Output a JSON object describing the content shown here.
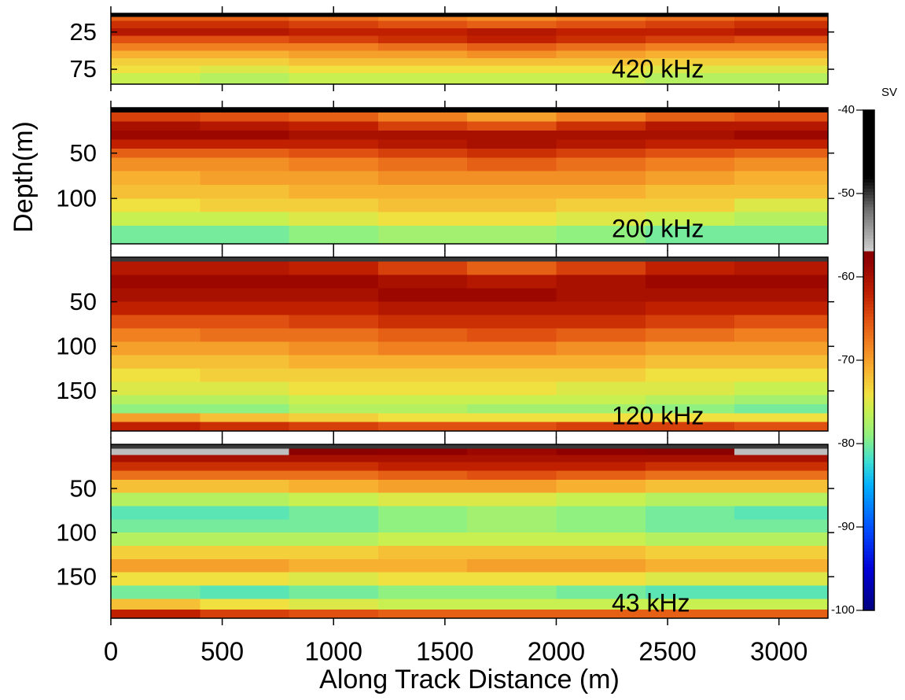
{
  "chart_data": [
    {
      "type": "heatmap",
      "label": "420 kHz",
      "xlim": [
        0,
        3220
      ],
      "xticks": [
        0,
        500,
        1000,
        1500,
        2000,
        2500,
        3000
      ],
      "ylim": [
        0,
        95
      ],
      "yticks": [
        25,
        75
      ],
      "x_bins": [
        0,
        400,
        800,
        1200,
        1600,
        2000,
        2400,
        2800,
        3220
      ],
      "y_bins": [
        0,
        5,
        10,
        20,
        30,
        40,
        50,
        60,
        70,
        80,
        95
      ],
      "z": [
        [
          -45,
          -45,
          -45,
          -45,
          -45,
          -45,
          -45,
          -45
        ],
        [
          -66,
          -66,
          -67,
          -68,
          -69,
          -68,
          -67,
          -66
        ],
        [
          -63,
          -63,
          -64,
          -65,
          -66,
          -65,
          -64,
          -63
        ],
        [
          -61,
          -61,
          -62,
          -62,
          -61,
          -62,
          -62,
          -61
        ],
        [
          -65,
          -65,
          -64,
          -63,
          -62,
          -63,
          -64,
          -65
        ],
        [
          -68,
          -68,
          -68,
          -67,
          -66,
          -67,
          -68,
          -68
        ],
        [
          -71,
          -71,
          -70,
          -70,
          -69,
          -70,
          -71,
          -71
        ],
        [
          -73,
          -73,
          -72,
          -72,
          -72,
          -72,
          -73,
          -73
        ],
        [
          -74,
          -75,
          -74,
          -74,
          -74,
          -74,
          -75,
          -75
        ],
        [
          -76,
          -77,
          -76,
          -76,
          -76,
          -76,
          -77,
          -77
        ]
      ]
    },
    {
      "type": "heatmap",
      "label": "200 kHz",
      "ylabel": "Depth(m)",
      "xlim": [
        0,
        3220
      ],
      "xticks": [
        0,
        500,
        1000,
        1500,
        2000,
        2500,
        3000
      ],
      "ylim": [
        0,
        150
      ],
      "yticks": [
        50,
        100
      ],
      "x_bins": [
        0,
        400,
        800,
        1200,
        1600,
        2000,
        2400,
        2800,
        3220
      ],
      "y_bins": [
        0,
        5,
        15,
        25,
        35,
        45,
        55,
        70,
        85,
        100,
        115,
        130,
        150
      ],
      "z": [
        [
          -48,
          -48,
          -48,
          -48,
          -48,
          -48,
          -48,
          -48
        ],
        [
          -64,
          -65,
          -66,
          -68,
          -70,
          -68,
          -66,
          -65
        ],
        [
          -60,
          -61,
          -62,
          -64,
          -65,
          -63,
          -61,
          -61
        ],
        [
          -59,
          -59,
          -60,
          -60,
          -60,
          -60,
          -60,
          -59
        ],
        [
          -62,
          -62,
          -62,
          -61,
          -60,
          -61,
          -62,
          -62
        ],
        [
          -66,
          -66,
          -65,
          -64,
          -63,
          -64,
          -65,
          -66
        ],
        [
          -69,
          -69,
          -68,
          -67,
          -66,
          -67,
          -68,
          -69
        ],
        [
          -71,
          -70,
          -70,
          -69,
          -69,
          -69,
          -70,
          -71
        ],
        [
          -72,
          -72,
          -71,
          -71,
          -71,
          -71,
          -72,
          -72
        ],
        [
          -74,
          -73,
          -73,
          -72,
          -72,
          -73,
          -73,
          -75
        ],
        [
          -76,
          -76,
          -75,
          -74,
          -74,
          -75,
          -76,
          -77
        ],
        [
          -80,
          -80,
          -79,
          -78,
          -78,
          -79,
          -80,
          -80
        ]
      ]
    },
    {
      "type": "heatmap",
      "label": "120 kHz",
      "xlim": [
        0,
        3220
      ],
      "xticks": [
        0,
        500,
        1000,
        1500,
        2000,
        2500,
        3000
      ],
      "ylim": [
        0,
        195
      ],
      "yticks": [
        50,
        100,
        150
      ],
      "x_bins": [
        0,
        400,
        800,
        1200,
        1600,
        2000,
        2400,
        2800,
        3220
      ],
      "y_bins": [
        0,
        5,
        20,
        35,
        50,
        65,
        80,
        95,
        110,
        125,
        140,
        155,
        165,
        175,
        185,
        195
      ],
      "z": [
        [
          -50,
          -50,
          -50,
          -50,
          -50,
          -50,
          -50,
          -50
        ],
        [
          -61,
          -61,
          -62,
          -64,
          -66,
          -64,
          -62,
          -61
        ],
        [
          -59,
          -59,
          -59,
          -60,
          -61,
          -60,
          -59,
          -59
        ],
        [
          -60,
          -60,
          -60,
          -59,
          -59,
          -60,
          -60,
          -60
        ],
        [
          -62,
          -62,
          -62,
          -61,
          -61,
          -61,
          -62,
          -62
        ],
        [
          -65,
          -65,
          -64,
          -63,
          -63,
          -63,
          -64,
          -65
        ],
        [
          -68,
          -67,
          -67,
          -66,
          -65,
          -66,
          -67,
          -68
        ],
        [
          -70,
          -70,
          -69,
          -68,
          -68,
          -69,
          -70,
          -70
        ],
        [
          -72,
          -72,
          -71,
          -71,
          -71,
          -71,
          -72,
          -72
        ],
        [
          -74,
          -73,
          -73,
          -73,
          -73,
          -73,
          -74,
          -74
        ],
        [
          -75,
          -75,
          -74,
          -74,
          -74,
          -75,
          -75,
          -76
        ],
        [
          -77,
          -77,
          -76,
          -76,
          -76,
          -76,
          -77,
          -78
        ],
        [
          -79,
          -79,
          -77,
          -77,
          -78,
          -78,
          -79,
          -80
        ],
        [
          -70,
          -72,
          -73,
          -74,
          -74,
          -74,
          -74,
          -74
        ],
        [
          -62,
          -63,
          -64,
          -65,
          -65,
          -64,
          -64,
          -65
        ]
      ]
    },
    {
      "type": "heatmap",
      "label": "43 kHz",
      "xlabel": "Along Track Distance (m)",
      "xlim": [
        0,
        3220
      ],
      "xticks": [
        0,
        500,
        1000,
        1500,
        2000,
        2500,
        3000
      ],
      "ylim": [
        0,
        197
      ],
      "yticks": [
        50,
        100,
        150
      ],
      "x_bins": [
        0,
        400,
        800,
        1200,
        1600,
        2000,
        2400,
        2800,
        3220
      ],
      "y_bins": [
        0,
        5,
        12,
        20,
        30,
        40,
        55,
        70,
        85,
        100,
        115,
        130,
        145,
        160,
        175,
        187,
        197
      ],
      "z": [
        [
          -50,
          -50,
          -50,
          -50,
          -50,
          -50,
          -50,
          -50
        ],
        [
          -56,
          -56,
          -57,
          -58,
          -59,
          -58,
          -57,
          -56
        ],
        [
          -60,
          -60,
          -60,
          -60,
          -60,
          -60,
          -60,
          -60
        ],
        [
          -63,
          -63,
          -63,
          -62,
          -62,
          -62,
          -63,
          -63
        ],
        [
          -67,
          -67,
          -67,
          -66,
          -65,
          -66,
          -67,
          -67
        ],
        [
          -72,
          -72,
          -71,
          -70,
          -70,
          -71,
          -72,
          -72
        ],
        [
          -77,
          -77,
          -76,
          -75,
          -75,
          -76,
          -77,
          -77
        ],
        [
          -81,
          -81,
          -80,
          -79,
          -78,
          -79,
          -80,
          -81
        ],
        [
          -80,
          -80,
          -80,
          -79,
          -78,
          -79,
          -80,
          -80
        ],
        [
          -77,
          -77,
          -77,
          -76,
          -76,
          -76,
          -77,
          -77
        ],
        [
          -73,
          -73,
          -73,
          -72,
          -72,
          -72,
          -73,
          -73
        ],
        [
          -70,
          -70,
          -71,
          -71,
          -70,
          -70,
          -71,
          -71
        ],
        [
          -74,
          -74,
          -75,
          -74,
          -74,
          -74,
          -75,
          -75
        ],
        [
          -80,
          -81,
          -80,
          -79,
          -79,
          -80,
          -81,
          -81
        ],
        [
          -72,
          -74,
          -75,
          -76,
          -76,
          -76,
          -76,
          -76
        ],
        [
          -62,
          -64,
          -65,
          -66,
          -66,
          -66,
          -66,
          -66
        ]
      ]
    },
    {
      "type": "colorbar",
      "title": "SV",
      "zlim": [
        -100,
        -40
      ],
      "zticks": [
        -40,
        -50,
        -60,
        -70,
        -80,
        -90,
        -100
      ],
      "colormap": [
        [
          -100,
          "#00007f"
        ],
        [
          -95,
          "#0000d8"
        ],
        [
          -90,
          "#0050ff"
        ],
        [
          -85,
          "#00b0ff"
        ],
        [
          -82,
          "#40e0d0"
        ],
        [
          -79,
          "#90f080"
        ],
        [
          -76,
          "#c8f050"
        ],
        [
          -74,
          "#f0e040"
        ],
        [
          -71,
          "#f8b030"
        ],
        [
          -68,
          "#f08020"
        ],
        [
          -65,
          "#e05010"
        ],
        [
          -62,
          "#c02000"
        ],
        [
          -58,
          "#900000"
        ],
        [
          -57,
          "#8b0000"
        ],
        [
          -56.9,
          "#d0d0d0"
        ],
        [
          -52,
          "#707070"
        ],
        [
          -48,
          "#000000"
        ],
        [
          -40,
          "#000000"
        ]
      ]
    }
  ]
}
